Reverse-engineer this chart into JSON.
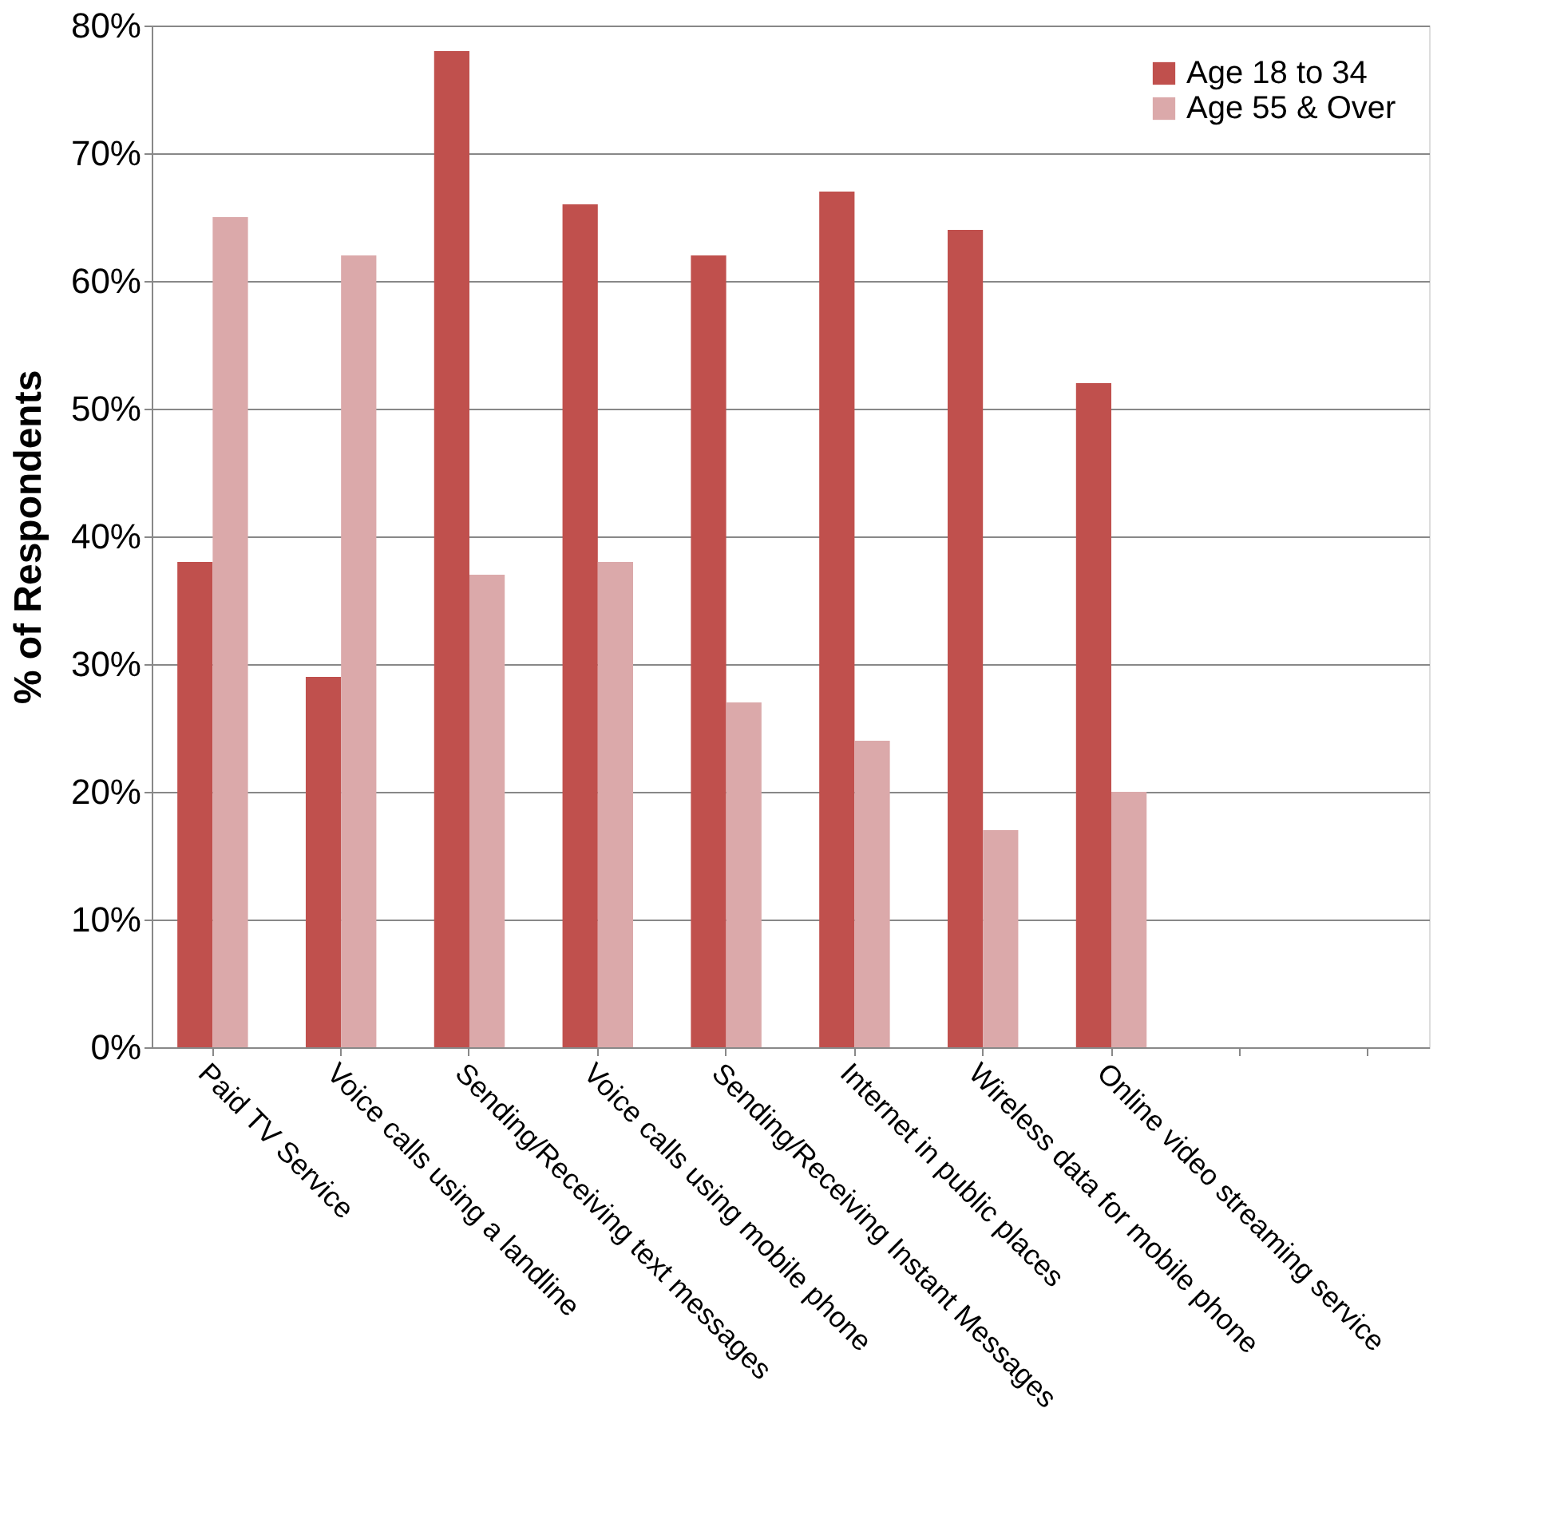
{
  "chart_data": {
    "type": "bar",
    "ylabel": "% of Respondents",
    "categories": [
      "Paid TV Service",
      "Voice calls using a landline",
      "Sending/Receiving text messages",
      "Voice calls using mobile phone",
      "Sending/Receiving Instant Messages",
      "Internet in public places",
      "Wireless data for mobile phone",
      "Online video streaming service",
      null,
      null
    ],
    "series": [
      {
        "name": "Age 18 to 34",
        "color": "#c0504d",
        "values": [
          38,
          29,
          78,
          66,
          62,
          67,
          64,
          52,
          null,
          null
        ]
      },
      {
        "name": "Age 55 & Over",
        "color": "#dba9aa",
        "values": [
          65,
          62,
          37,
          38,
          27,
          24,
          17,
          20,
          null,
          null
        ]
      }
    ],
    "ylim": [
      0,
      80
    ],
    "yticks": [
      {
        "value": 0,
        "label": "0%"
      },
      {
        "value": 10,
        "label": "10%"
      },
      {
        "value": 20,
        "label": "20%"
      },
      {
        "value": 30,
        "label": "30%"
      },
      {
        "value": 40,
        "label": "40%"
      },
      {
        "value": 50,
        "label": "50%"
      },
      {
        "value": 60,
        "label": "60%"
      },
      {
        "value": 70,
        "label": "70%"
      },
      {
        "value": 80,
        "label": "80%"
      }
    ],
    "grid": "y",
    "legend": "top right"
  }
}
